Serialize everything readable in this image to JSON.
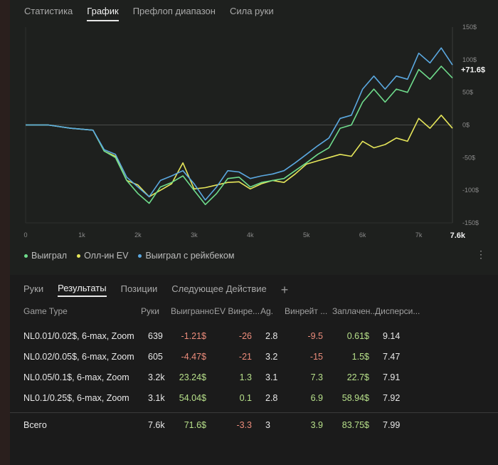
{
  "top_tabs": [
    {
      "label": "Статистика",
      "active": false
    },
    {
      "label": "График",
      "active": true
    },
    {
      "label": "Префлоп диапазон",
      "active": false
    },
    {
      "label": "Сила руки",
      "active": false
    }
  ],
  "chart_data": {
    "type": "line",
    "x_ticks": [
      "0",
      "1k",
      "2k",
      "3k",
      "4k",
      "5k",
      "6k",
      "7k"
    ],
    "x_end_label": "7.6k",
    "y_ticks": [
      "150$",
      "100$",
      "50$",
      "0$",
      "-50$",
      "-100$",
      "-150$"
    ],
    "ylim": [
      -150,
      150
    ],
    "xlim": [
      0,
      7600
    ],
    "current_value_label": "+71.6$",
    "x": [
      0,
      400,
      800,
      1200,
      1400,
      1600,
      1800,
      2000,
      2200,
      2400,
      2600,
      2800,
      3000,
      3200,
      3400,
      3600,
      3800,
      4000,
      4200,
      4400,
      4600,
      4800,
      5000,
      5200,
      5400,
      5600,
      5800,
      6000,
      6200,
      6400,
      6600,
      6800,
      7000,
      7200,
      7400,
      7600
    ],
    "series": [
      {
        "name": "Выиграл",
        "color": "#6fdc8c",
        "values": [
          0,
          0,
          -5,
          -8,
          -40,
          -50,
          -85,
          -105,
          -120,
          -95,
          -88,
          -78,
          -100,
          -122,
          -105,
          -82,
          -80,
          -95,
          -88,
          -85,
          -82,
          -70,
          -58,
          -45,
          -35,
          -5,
          0,
          35,
          55,
          35,
          55,
          50,
          85,
          70,
          90,
          72
        ]
      },
      {
        "name": "Олл-ин EV",
        "color": "#e6e65a",
        "values": [
          0,
          0,
          -5,
          -8,
          -40,
          -48,
          -85,
          -92,
          -110,
          -100,
          -90,
          -58,
          -98,
          -96,
          -92,
          -88,
          -87,
          -98,
          -90,
          -85,
          -88,
          -75,
          -60,
          -55,
          -50,
          -45,
          -48,
          -25,
          -35,
          -30,
          -20,
          -25,
          10,
          -5,
          15,
          -5
        ]
      },
      {
        "name": "Выиграл с рейкбеком",
        "color": "#5ba8e0",
        "values": [
          0,
          0,
          -5,
          -8,
          -38,
          -45,
          -80,
          -95,
          -110,
          -85,
          -78,
          -70,
          -90,
          -115,
          -95,
          -70,
          -72,
          -82,
          -78,
          -75,
          -70,
          -58,
          -45,
          -32,
          -20,
          10,
          15,
          55,
          75,
          55,
          75,
          70,
          110,
          95,
          118,
          92
        ]
      }
    ]
  },
  "legend": [
    {
      "label": "Выиграл",
      "color": "#6fdc8c"
    },
    {
      "label": "Олл-ин EV",
      "color": "#e6e65a"
    },
    {
      "label": "Выиграл с рейкбеком",
      "color": "#5ba8e0"
    }
  ],
  "bottom_tabs": [
    {
      "label": "Руки",
      "active": false
    },
    {
      "label": "Результаты",
      "active": true
    },
    {
      "label": "Позиции",
      "active": false
    },
    {
      "label": "Следующее Действие",
      "active": false
    }
  ],
  "table": {
    "columns": [
      "Game Type",
      "Руки",
      "Выигранно",
      "EV Винре...",
      "Ag.",
      "Винрейт ...",
      "Заплачен...",
      "Дисперси..."
    ],
    "rows": [
      {
        "game": "NL0.01/0.02$, 6-max, Zoom",
        "hands": "639",
        "won": "-1.21$",
        "ev": "-26",
        "ag": "2.8",
        "winrate": "-9.5",
        "paid": "0.61$",
        "variance": "9.14"
      },
      {
        "game": "NL0.02/0.05$, 6-max, Zoom",
        "hands": "605",
        "won": "-4.47$",
        "ev": "-21",
        "ag": "3.2",
        "winrate": "-15",
        "paid": "1.5$",
        "variance": "7.47"
      },
      {
        "game": "NL0.05/0.1$, 6-max, Zoom",
        "hands": "3.2k",
        "won": "23.24$",
        "ev": "1.3",
        "ag": "3.1",
        "winrate": "7.3",
        "paid": "22.7$",
        "variance": "7.91"
      },
      {
        "game": "NL0.1/0.25$, 6-max, Zoom",
        "hands": "3.1k",
        "won": "54.04$",
        "ev": "0.1",
        "ag": "2.8",
        "winrate": "6.9",
        "paid": "58.94$",
        "variance": "7.92"
      }
    ],
    "total": {
      "game": "Всего",
      "hands": "7.6k",
      "won": "71.6$",
      "ev": "-3.3",
      "ag": "3",
      "winrate": "3.9",
      "paid": "83.75$",
      "variance": "7.99"
    }
  }
}
